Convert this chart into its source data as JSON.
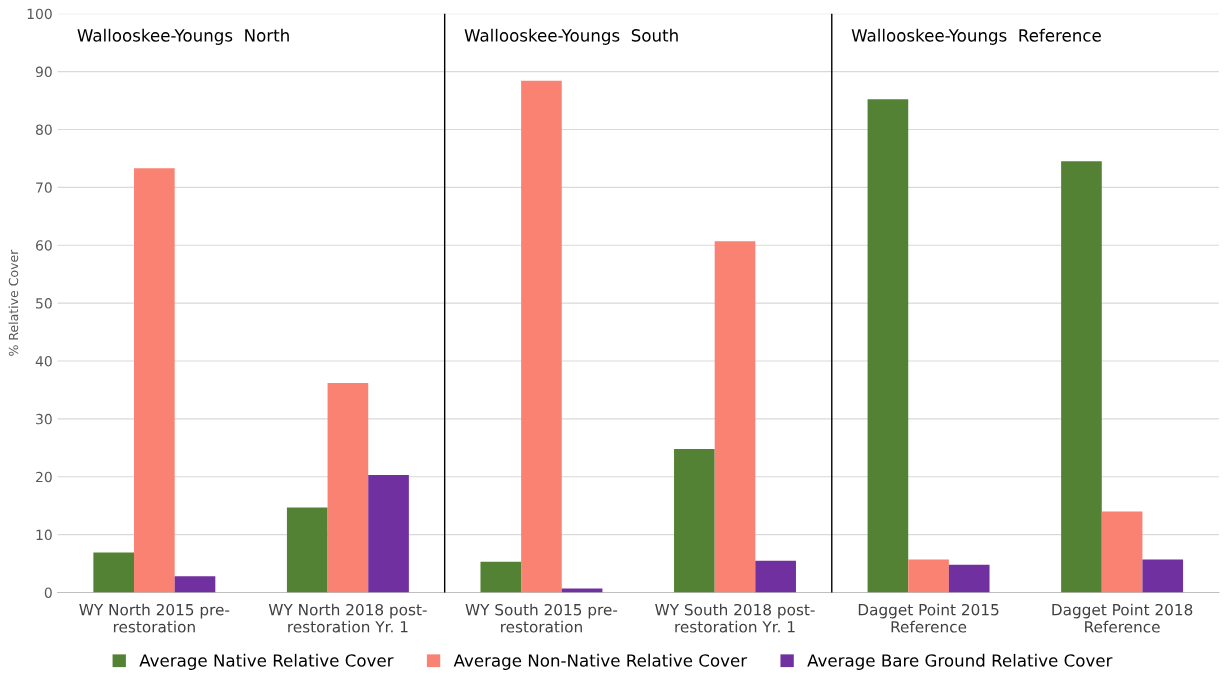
{
  "chart_data": {
    "type": "bar",
    "ylabel": "% Relative Cover",
    "categories": [
      "WY North 2015 pre-\nrestoration",
      "WY North 2018 post-\nrestoration Yr. 1",
      "WY South 2015 pre-\nrestoration",
      "WY South 2018 post-\nrestoration Yr. 1",
      "Dagget Point 2015\nReference",
      "Dagget Point 2018\nReference"
    ],
    "series": [
      {
        "name": "Average Native Relative Cover",
        "color": "#548235",
        "values": [
          6.9,
          14.7,
          5.3,
          24.8,
          85.2,
          74.5
        ]
      },
      {
        "name": "Average Non-Native Relative Cover",
        "color": "#f98272",
        "values": [
          73.3,
          36.2,
          88.4,
          60.7,
          5.7,
          14.0
        ]
      },
      {
        "name": "Average Bare Ground Relative Cover",
        "color": "#7030a0",
        "values": [
          2.8,
          20.3,
          0.7,
          5.5,
          4.8,
          5.7
        ]
      }
    ],
    "ylim": [
      0,
      100
    ],
    "yticks": [
      0,
      10,
      20,
      30,
      40,
      50,
      60,
      70,
      80,
      90,
      100
    ],
    "grid": "y",
    "legend": "bottom",
    "annotations": [
      "Wallooskee-Youngs  North",
      "Wallooskee-Youngs  South",
      "Wallooskee-Youngs  Reference"
    ]
  }
}
